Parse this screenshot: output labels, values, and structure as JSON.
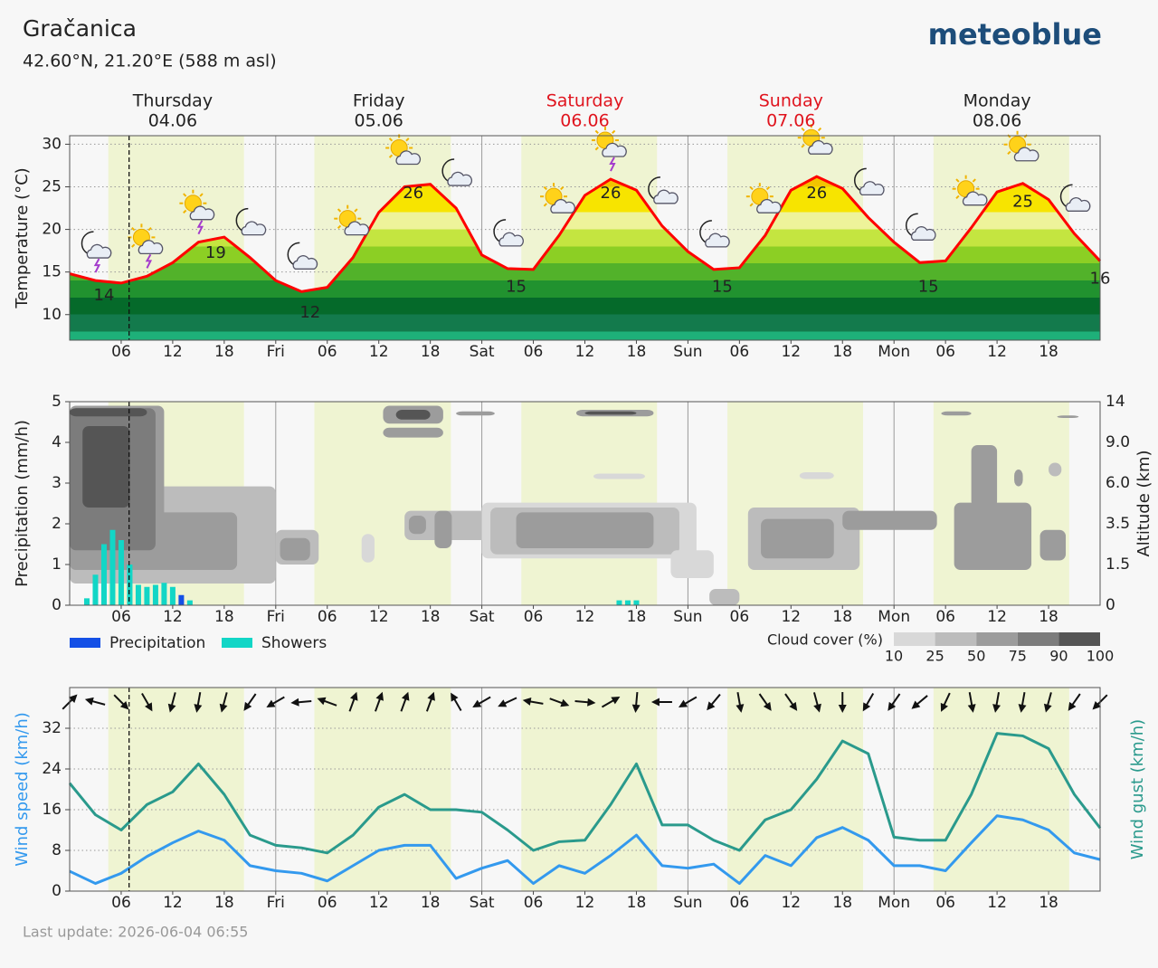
{
  "header": {
    "title": "Gračanica",
    "subtitle": "42.60°N, 21.20°E (588 m asl)",
    "logo": "meteoblue"
  },
  "footer": "Last update: 2026-06-04 06:55",
  "chart_data": [
    {
      "type": "line",
      "y_label": "Temperature (°C)",
      "color": "#ff0000",
      "days": [
        {
          "name": "Thursday",
          "date": "04.06",
          "color": "#222222"
        },
        {
          "name": "Friday",
          "date": "05.06",
          "color": "#222222"
        },
        {
          "name": "Saturday",
          "date": "06.06",
          "color": "#e0141e"
        },
        {
          "name": "Sunday",
          "date": "07.06",
          "color": "#e0141e"
        },
        {
          "name": "Monday",
          "date": "08.06",
          "color": "#222222"
        }
      ],
      "x": [
        0,
        3,
        6,
        9,
        12,
        15,
        18,
        21,
        24,
        27,
        30,
        33,
        36,
        39,
        42,
        45,
        48,
        51,
        54,
        57,
        60,
        63,
        66,
        69,
        72,
        75,
        78,
        81,
        84,
        87,
        90,
        93,
        96,
        99,
        102,
        105,
        108,
        111,
        114,
        117,
        120
      ],
      "values": [
        14.8,
        14.0,
        13.7,
        14.5,
        16.1,
        18.5,
        19.1,
        16.7,
        14.0,
        12.7,
        13.2,
        16.7,
        22.0,
        25.0,
        25.3,
        22.5,
        17.0,
        15.4,
        15.3,
        19.3,
        24.0,
        25.9,
        24.6,
        20.4,
        17.4,
        15.3,
        15.5,
        19.3,
        24.6,
        26.2,
        24.8,
        21.4,
        18.5,
        16.1,
        16.3,
        20.2,
        24.4,
        25.4,
        23.5,
        19.5,
        16.3
      ],
      "extremes": [
        {
          "x": 4,
          "value": 14
        },
        {
          "x": 17,
          "value": 19
        },
        {
          "x": 28,
          "value": 12
        },
        {
          "x": 40,
          "value": 26
        },
        {
          "x": 52,
          "value": 15
        },
        {
          "x": 63,
          "value": 26
        },
        {
          "x": 76,
          "value": 15
        },
        {
          "x": 87,
          "value": 26
        },
        {
          "x": 100,
          "value": 15
        },
        {
          "x": 111,
          "value": 25
        },
        {
          "x": 120,
          "value": 16
        }
      ],
      "icons": [
        {
          "x": 3,
          "kind": "moon-cloud-thunder"
        },
        {
          "x": 9,
          "kind": "sun-cloud-thunder"
        },
        {
          "x": 15,
          "kind": "sun-cloud-thunder"
        },
        {
          "x": 21,
          "kind": "moon-cloud"
        },
        {
          "x": 27,
          "kind": "moon-cloud"
        },
        {
          "x": 33,
          "kind": "sun-cloud"
        },
        {
          "x": 39,
          "kind": "sun-cloud"
        },
        {
          "x": 45,
          "kind": "moon-cloud"
        },
        {
          "x": 51,
          "kind": "moon-cloud"
        },
        {
          "x": 57,
          "kind": "sun-cloud"
        },
        {
          "x": 63,
          "kind": "sun-cloud-thunder"
        },
        {
          "x": 69,
          "kind": "moon-cloud"
        },
        {
          "x": 75,
          "kind": "moon-cloud"
        },
        {
          "x": 81,
          "kind": "sun-cloud"
        },
        {
          "x": 87,
          "kind": "sun-cloud"
        },
        {
          "x": 93,
          "kind": "moon-cloud"
        },
        {
          "x": 99,
          "kind": "moon-cloud"
        },
        {
          "x": 105,
          "kind": "sun-cloud"
        },
        {
          "x": 111,
          "kind": "sun-cloud"
        },
        {
          "x": 117,
          "kind": "moon-cloud"
        }
      ],
      "daylight": [
        [
          4.5,
          20.3
        ],
        [
          28.5,
          44.4
        ],
        [
          52.6,
          68.4
        ],
        [
          76.6,
          92.4
        ],
        [
          100.6,
          116.4
        ]
      ],
      "daylight_color": "#eff4d2",
      "now": 6.92,
      "xlim": [
        0,
        120
      ],
      "xticks": [
        {
          "value": 6,
          "label": "06"
        },
        12,
        18,
        {
          "value": 24,
          "label": "Fri"
        },
        {
          "value": 30,
          "label": "06"
        },
        {
          "value": 36,
          "label": "12"
        },
        {
          "value": 42,
          "label": "18"
        },
        {
          "value": 48,
          "label": "Sat"
        },
        {
          "value": 54,
          "label": "06"
        },
        {
          "value": 60,
          "label": "12"
        },
        {
          "value": 66,
          "label": "18"
        },
        {
          "value": 72,
          "label": "Sun"
        },
        {
          "value": 78,
          "label": "06"
        },
        {
          "value": 84,
          "label": "12"
        },
        {
          "value": 90,
          "label": "18"
        },
        {
          "value": 96,
          "label": "Mon"
        },
        {
          "value": 102,
          "label": "06"
        },
        {
          "value": 108,
          "label": "12"
        },
        {
          "value": 114,
          "label": "18"
        }
      ],
      "ylim": [
        7,
        31
      ],
      "yticks": [
        10,
        15,
        20,
        25,
        30
      ],
      "grid": true
    },
    {
      "type": "bar",
      "y_label": "Precipitation (mm/h)",
      "y2_label": "Altitude (km)",
      "x": [
        2,
        3,
        4,
        5,
        6,
        7,
        8,
        9,
        10,
        11,
        12,
        13,
        14,
        64,
        65,
        66
      ],
      "series": [
        {
          "name": "Precipitation",
          "color": "#1450e6",
          "values": [
            0,
            0,
            0,
            0,
            0,
            0,
            0,
            0,
            0,
            0,
            0,
            0.25,
            0,
            0,
            0,
            0
          ]
        },
        {
          "name": "Showers",
          "color": "#12d6c6",
          "values": [
            0.17,
            0.75,
            1.5,
            1.85,
            1.6,
            1.0,
            0.5,
            0.45,
            0.5,
            0.55,
            0.45,
            0,
            0.12,
            0.12,
            0.12,
            0.12
          ]
        }
      ],
      "cloud_cover": [
        {
          "x": [
            0,
            24
          ],
          "alt": [
            0.8,
            5.8
          ],
          "cover": 25
        },
        {
          "x": [
            0,
            19.5
          ],
          "alt": [
            1.3,
            4.2
          ],
          "cover": 50
        },
        {
          "x": [
            0,
            11
          ],
          "alt": [
            1.5,
            13.5
          ],
          "cover": 50
        },
        {
          "x": [
            0,
            10
          ],
          "alt": [
            2.2,
            13.2
          ],
          "cover": 75
        },
        {
          "x": [
            1.5,
            7
          ],
          "alt": [
            4.5,
            11
          ],
          "cover": 90
        },
        {
          "x": [
            0,
            9
          ],
          "alt": [
            12.2,
            13.2
          ],
          "cover": 90
        },
        {
          "x": [
            24,
            29
          ],
          "alt": [
            1.5,
            3.2
          ],
          "cover": 25
        },
        {
          "x": [
            24.5,
            28
          ],
          "alt": [
            1.7,
            2.8
          ],
          "cover": 50
        },
        {
          "x": [
            34,
            35.5
          ],
          "alt": [
            1.6,
            3.0
          ],
          "cover": 10
        },
        {
          "x": [
            36.5,
            43.5
          ],
          "alt": [
            11.3,
            13.5
          ],
          "cover": 50
        },
        {
          "x": [
            38,
            42
          ],
          "alt": [
            11.8,
            13
          ],
          "cover": 90
        },
        {
          "x": [
            36.5,
            43.5
          ],
          "alt": [
            9.6,
            10.8
          ],
          "cover": 50
        },
        {
          "x": [
            39,
            53
          ],
          "alt": [
            2.7,
            4.3
          ],
          "cover": 25
        },
        {
          "x": [
            39.5,
            41.5
          ],
          "alt": [
            3.0,
            4.0
          ],
          "cover": 50
        },
        {
          "x": [
            42.5,
            44.5
          ],
          "alt": [
            2.3,
            4.3
          ],
          "cover": 50
        },
        {
          "x": [
            45,
            49.5
          ],
          "alt": [
            12.3,
            12.8
          ],
          "cover": 50
        },
        {
          "x": [
            48,
            73
          ],
          "alt": [
            1.8,
            4.8
          ],
          "cover": 10
        },
        {
          "x": [
            49,
            71
          ],
          "alt": [
            2.0,
            4.5
          ],
          "cover": 25
        },
        {
          "x": [
            52,
            68
          ],
          "alt": [
            2.3,
            4.2
          ],
          "cover": 50
        },
        {
          "x": [
            59,
            68
          ],
          "alt": [
            12.2,
            13
          ],
          "cover": 50
        },
        {
          "x": [
            60,
            66
          ],
          "alt": [
            12.4,
            12.8
          ],
          "cover": 90
        },
        {
          "x": [
            61,
            67
          ],
          "alt": [
            6.3,
            6.7
          ],
          "cover": 10
        },
        {
          "x": [
            70,
            75
          ],
          "alt": [
            1.0,
            2.2
          ],
          "cover": 10
        },
        {
          "x": [
            74.5,
            78
          ],
          "alt": [
            0,
            0.6
          ],
          "cover": 25
        },
        {
          "x": [
            79,
            92
          ],
          "alt": [
            1.3,
            4.5
          ],
          "cover": 25
        },
        {
          "x": [
            80.5,
            89
          ],
          "alt": [
            1.8,
            3.8
          ],
          "cover": 50
        },
        {
          "x": [
            85,
            89
          ],
          "alt": [
            6.3,
            6.8
          ],
          "cover": 10
        },
        {
          "x": [
            90,
            101
          ],
          "alt": [
            3.2,
            4.3
          ],
          "cover": 50
        },
        {
          "x": [
            101.5,
            105
          ],
          "alt": [
            12.3,
            12.8
          ],
          "cover": 50
        },
        {
          "x": [
            103,
            112
          ],
          "alt": [
            1.3,
            4.8
          ],
          "cover": 50
        },
        {
          "x": [
            105,
            108
          ],
          "alt": [
            4.5,
            8.8
          ],
          "cover": 50
        },
        {
          "x": [
            110,
            111
          ],
          "alt": [
            5.8,
            7
          ],
          "cover": 50
        },
        {
          "x": [
            113,
            116
          ],
          "alt": [
            1.7,
            3.2
          ],
          "cover": 50
        },
        {
          "x": [
            114,
            115.5
          ],
          "alt": [
            6.5,
            7.5
          ],
          "cover": 25
        },
        {
          "x": [
            115,
            117.5
          ],
          "alt": [
            12,
            12.3
          ],
          "cover": 50
        }
      ],
      "cloud_legend": {
        "title": "Cloud cover (%)",
        "ticks": [
          10,
          25,
          50,
          75,
          90,
          100
        ],
        "colors": [
          "#d8d8d8",
          "#bcbcbc",
          "#9c9c9c",
          "#7c7c7c",
          "#555555"
        ]
      },
      "xlim": [
        0,
        120
      ],
      "xticks": [
        {
          "value": 6,
          "label": "06"
        },
        12,
        18,
        {
          "value": 24,
          "label": "Fri"
        },
        {
          "value": 30,
          "label": "06"
        },
        {
          "value": 36,
          "label": "12"
        },
        {
          "value": 42,
          "label": "18"
        },
        {
          "value": 48,
          "label": "Sat"
        },
        {
          "value": 54,
          "label": "06"
        },
        {
          "value": 60,
          "label": "12"
        },
        {
          "value": 66,
          "label": "18"
        },
        {
          "value": 72,
          "label": "Sun"
        },
        {
          "value": 78,
          "label": "06"
        },
        {
          "value": 84,
          "label": "12"
        },
        {
          "value": 90,
          "label": "18"
        },
        {
          "value": 96,
          "label": "Mon"
        },
        {
          "value": 102,
          "label": "06"
        },
        {
          "value": 108,
          "label": "12"
        },
        {
          "value": 114,
          "label": "18"
        }
      ],
      "ylim": [
        0,
        5
      ],
      "yticks": [
        0,
        1,
        2,
        3,
        4,
        5
      ],
      "y2lim": [
        0,
        14
      ],
      "y2ticks": [
        0,
        1.5,
        3.5,
        {
          "value": 6,
          "label": "6.0"
        },
        {
          "value": 9,
          "label": "9.0"
        },
        14
      ],
      "grid": false
    },
    {
      "type": "line",
      "y_label": "Wind speed (km/h)",
      "y2_label": "Wind gust (km/h)",
      "x": [
        0,
        3,
        6,
        9,
        12,
        15,
        18,
        21,
        24,
        27,
        30,
        33,
        36,
        39,
        42,
        45,
        48,
        51,
        54,
        57,
        60,
        63,
        66,
        69,
        72,
        75,
        78,
        81,
        84,
        87,
        90,
        93,
        96,
        99,
        102,
        105,
        108,
        111,
        114,
        117,
        120
      ],
      "series": [
        {
          "color": "#3399ee",
          "values": [
            3.9,
            1.5,
            3.5,
            6.8,
            9.5,
            11.8,
            10,
            5,
            4,
            3.5,
            2,
            5,
            8,
            9,
            9,
            2.5,
            4.5,
            6,
            1.5,
            5,
            3.5,
            7,
            11,
            5,
            4.5,
            5.3,
            1.5,
            7,
            5,
            10.5,
            12.5,
            10,
            5,
            5,
            4,
            9.5,
            14.8,
            14,
            12,
            7.5,
            6.2
          ]
        },
        {
          "color": "#2a9a8c",
          "values": [
            21.2,
            15,
            12,
            17,
            19.5,
            25,
            19,
            11,
            9,
            8.5,
            7.5,
            11,
            16.5,
            19,
            16,
            16,
            15.5,
            12,
            8,
            9.7,
            10,
            17,
            25,
            13,
            13,
            10,
            8,
            14,
            16,
            22,
            29.5,
            27,
            10.6,
            10,
            10,
            19,
            31,
            30.5,
            28,
            19,
            12.4
          ]
        }
      ],
      "wind_direction": [
        45,
        285,
        135,
        150,
        195,
        190,
        195,
        215,
        240,
        265,
        290,
        20,
        20,
        20,
        20,
        330,
        240,
        245,
        280,
        110,
        95,
        60,
        185,
        270,
        240,
        220,
        170,
        145,
        145,
        165,
        180,
        210,
        215,
        230,
        205,
        170,
        190,
        190,
        195,
        215,
        225
      ],
      "xlim": [
        0,
        120
      ],
      "xticks": [
        {
          "value": 6,
          "label": "06"
        },
        12,
        18,
        {
          "value": 24,
          "label": "Fri"
        },
        {
          "value": 30,
          "label": "06"
        },
        {
          "value": 36,
          "label": "12"
        },
        {
          "value": 42,
          "label": "18"
        },
        {
          "value": 48,
          "label": "Sat"
        },
        {
          "value": 54,
          "label": "06"
        },
        {
          "value": 60,
          "label": "12"
        },
        {
          "value": 66,
          "label": "18"
        },
        {
          "value": 72,
          "label": "Sun"
        },
        {
          "value": 78,
          "label": "06"
        },
        {
          "value": 84,
          "label": "12"
        },
        {
          "value": 90,
          "label": "18"
        },
        {
          "value": 96,
          "label": "Mon"
        },
        {
          "value": 102,
          "label": "06"
        },
        {
          "value": 108,
          "label": "12"
        },
        {
          "value": 114,
          "label": "18"
        }
      ],
      "ylim": [
        0,
        40
      ],
      "yticks": [
        0,
        8,
        16,
        24,
        32
      ],
      "grid": true
    }
  ]
}
